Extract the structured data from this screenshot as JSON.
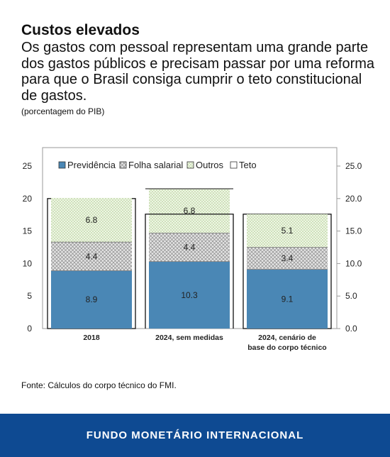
{
  "header": {
    "title": "Custos elevados",
    "subtitle": "Os gastos com pessoal representam uma grande parte dos gastos públicos e precisam passar por uma reforma para que o Brasil consiga cumprir o teto constitucional de gastos.",
    "unit": "(porcentagem do PIB)"
  },
  "source": "Fonte: Cálculos do corpo técnico do FMI.",
  "footer": {
    "org": "FUNDO MONETÁRIO INTERNACIONAL"
  },
  "chart_data": {
    "type": "bar",
    "stacked": true,
    "categories": [
      [
        "2018"
      ],
      [
        "2024, sem medidas"
      ],
      [
        "2024, cenário de",
        "base do corpo técnico"
      ]
    ],
    "series": [
      {
        "name": "Previdência",
        "values": [
          8.9,
          10.3,
          9.1
        ],
        "color": "#4a87b5",
        "labels": [
          "8.9",
          "10.3",
          "9.1"
        ]
      },
      {
        "name": "Folha salarial",
        "values": [
          4.4,
          4.4,
          3.4
        ],
        "color": "#b5b5b5",
        "pattern": "cross-hatch",
        "labels": [
          "4.4",
          "4.4",
          "3.4"
        ]
      },
      {
        "name": "Outros",
        "values": [
          6.8,
          6.8,
          5.1
        ],
        "color": "#dfeccd",
        "pattern": "dotted",
        "labels": [
          "6.8",
          "6.8",
          "5.1"
        ]
      }
    ],
    "teto": {
      "name": "Teto",
      "values": [
        20.0,
        17.6,
        17.6
      ]
    },
    "y_left": {
      "ticks": [
        0,
        5,
        10,
        15,
        20,
        25
      ],
      "tick_labels": [
        "0",
        "5",
        "10",
        "15",
        "20",
        "25"
      ]
    },
    "y_right": {
      "ticks": [
        0,
        5,
        10,
        15,
        20,
        25
      ],
      "tick_labels": [
        "0.0",
        "5.0",
        "10.0",
        "15.0",
        "20.0",
        "25.0"
      ]
    },
    "ylim": [
      0,
      27.5
    ],
    "legend": {
      "position": "top-left",
      "entries": [
        "Previdência",
        "Folha salarial",
        "Outros",
        "Teto"
      ]
    },
    "grid": false
  }
}
